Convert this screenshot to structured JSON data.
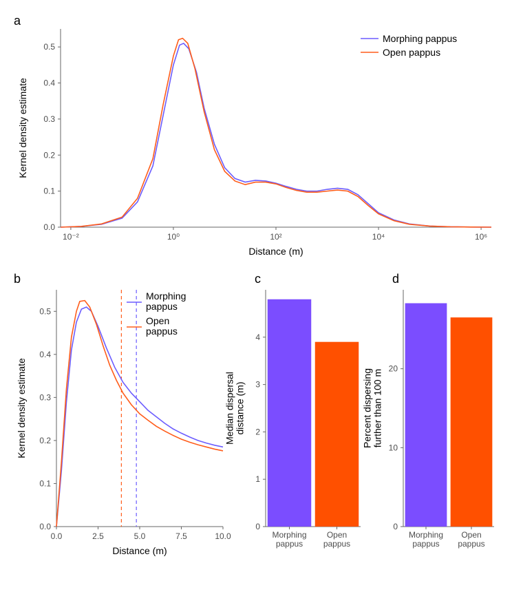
{
  "colors": {
    "morphing": "#6b5cff",
    "open": "#ff5c1a",
    "morphing_bar": "#7b4dff",
    "open_bar": "#ff5000",
    "axis": "#666666",
    "tick": "#4d4d4d",
    "panel_bg": "#ffffff",
    "grid": "#ebebeb"
  },
  "panel_a": {
    "label": "a",
    "type": "line",
    "x_label": "Distance (m)",
    "y_label": "Kernel density estimate",
    "x_scale": "log10",
    "x_tick_exponents": [
      -2,
      0,
      2,
      4,
      6
    ],
    "y_ticks": [
      0.0,
      0.1,
      0.2,
      0.3,
      0.4,
      0.5
    ],
    "ylim": [
      0,
      0.55
    ],
    "line_width": 1.6,
    "series": [
      {
        "name": "Morphing pappus",
        "color_key": "morphing",
        "points": [
          [
            -2.2,
            0.0
          ],
          [
            -1.8,
            0.002
          ],
          [
            -1.4,
            0.008
          ],
          [
            -1.0,
            0.025
          ],
          [
            -0.7,
            0.07
          ],
          [
            -0.4,
            0.17
          ],
          [
            -0.2,
            0.31
          ],
          [
            0.0,
            0.45
          ],
          [
            0.12,
            0.505
          ],
          [
            0.2,
            0.51
          ],
          [
            0.3,
            0.495
          ],
          [
            0.45,
            0.43
          ],
          [
            0.6,
            0.33
          ],
          [
            0.8,
            0.23
          ],
          [
            1.0,
            0.165
          ],
          [
            1.2,
            0.135
          ],
          [
            1.4,
            0.125
          ],
          [
            1.6,
            0.13
          ],
          [
            1.8,
            0.128
          ],
          [
            2.0,
            0.122
          ],
          [
            2.2,
            0.113
          ],
          [
            2.4,
            0.105
          ],
          [
            2.6,
            0.1
          ],
          [
            2.8,
            0.1
          ],
          [
            3.0,
            0.105
          ],
          [
            3.2,
            0.108
          ],
          [
            3.4,
            0.105
          ],
          [
            3.6,
            0.09
          ],
          [
            3.8,
            0.065
          ],
          [
            4.0,
            0.04
          ],
          [
            4.3,
            0.02
          ],
          [
            4.6,
            0.009
          ],
          [
            5.0,
            0.003
          ],
          [
            5.4,
            0.001
          ],
          [
            5.8,
            0.0003
          ],
          [
            6.2,
            0.0
          ]
        ]
      },
      {
        "name": "Open pappus",
        "color_key": "open",
        "points": [
          [
            -2.2,
            0.0
          ],
          [
            -1.8,
            0.002
          ],
          [
            -1.4,
            0.009
          ],
          [
            -1.0,
            0.028
          ],
          [
            -0.7,
            0.08
          ],
          [
            -0.4,
            0.19
          ],
          [
            -0.2,
            0.34
          ],
          [
            0.0,
            0.475
          ],
          [
            0.1,
            0.52
          ],
          [
            0.18,
            0.524
          ],
          [
            0.28,
            0.51
          ],
          [
            0.42,
            0.44
          ],
          [
            0.6,
            0.32
          ],
          [
            0.8,
            0.215
          ],
          [
            1.0,
            0.155
          ],
          [
            1.2,
            0.128
          ],
          [
            1.4,
            0.118
          ],
          [
            1.6,
            0.125
          ],
          [
            1.8,
            0.125
          ],
          [
            2.0,
            0.12
          ],
          [
            2.2,
            0.11
          ],
          [
            2.4,
            0.102
          ],
          [
            2.6,
            0.097
          ],
          [
            2.8,
            0.097
          ],
          [
            3.0,
            0.1
          ],
          [
            3.2,
            0.103
          ],
          [
            3.4,
            0.1
          ],
          [
            3.6,
            0.085
          ],
          [
            3.8,
            0.06
          ],
          [
            4.0,
            0.037
          ],
          [
            4.3,
            0.018
          ],
          [
            4.6,
            0.008
          ],
          [
            5.0,
            0.003
          ],
          [
            5.4,
            0.001
          ],
          [
            5.8,
            0.0003
          ],
          [
            6.2,
            0.0
          ]
        ]
      }
    ],
    "legend": {
      "items": [
        "Morphing pappus",
        "Open pappus"
      ],
      "position": "top-right"
    }
  },
  "panel_b": {
    "label": "b",
    "type": "line",
    "x_label": "Distance (m)",
    "y_label": "Kernel density estimate",
    "x_ticks": [
      0.0,
      2.5,
      5.0,
      7.5,
      10.0
    ],
    "y_ticks": [
      0.0,
      0.1,
      0.2,
      0.3,
      0.4,
      0.5
    ],
    "xlim": [
      0,
      10
    ],
    "ylim": [
      0,
      0.55
    ],
    "line_width": 1.6,
    "vlines": [
      {
        "x": 3.9,
        "color_key": "open",
        "dash": "5,4",
        "width": 1.2
      },
      {
        "x": 4.8,
        "color_key": "morphing",
        "dash": "5,4",
        "width": 1.2
      }
    ],
    "series": [
      {
        "name": "Morphing pappus",
        "color_key": "morphing",
        "points": [
          [
            0.0,
            0.0
          ],
          [
            0.3,
            0.13
          ],
          [
            0.6,
            0.29
          ],
          [
            0.9,
            0.41
          ],
          [
            1.2,
            0.475
          ],
          [
            1.5,
            0.505
          ],
          [
            1.8,
            0.51
          ],
          [
            2.1,
            0.5
          ],
          [
            2.5,
            0.465
          ],
          [
            3.0,
            0.415
          ],
          [
            3.5,
            0.37
          ],
          [
            4.0,
            0.335
          ],
          [
            4.5,
            0.31
          ],
          [
            5.0,
            0.29
          ],
          [
            5.5,
            0.27
          ],
          [
            6.0,
            0.255
          ],
          [
            6.5,
            0.24
          ],
          [
            7.0,
            0.227
          ],
          [
            7.5,
            0.217
          ],
          [
            8.0,
            0.208
          ],
          [
            8.5,
            0.2
          ],
          [
            9.0,
            0.194
          ],
          [
            9.5,
            0.189
          ],
          [
            10.0,
            0.185
          ]
        ]
      },
      {
        "name": "Open pappus",
        "color_key": "open",
        "points": [
          [
            0.0,
            0.0
          ],
          [
            0.3,
            0.15
          ],
          [
            0.6,
            0.32
          ],
          [
            0.9,
            0.44
          ],
          [
            1.2,
            0.5
          ],
          [
            1.4,
            0.523
          ],
          [
            1.7,
            0.525
          ],
          [
            2.0,
            0.51
          ],
          [
            2.4,
            0.47
          ],
          [
            2.8,
            0.42
          ],
          [
            3.2,
            0.375
          ],
          [
            3.6,
            0.34
          ],
          [
            4.0,
            0.31
          ],
          [
            4.5,
            0.283
          ],
          [
            5.0,
            0.262
          ],
          [
            5.5,
            0.247
          ],
          [
            6.0,
            0.233
          ],
          [
            6.5,
            0.222
          ],
          [
            7.0,
            0.212
          ],
          [
            7.5,
            0.203
          ],
          [
            8.0,
            0.196
          ],
          [
            8.5,
            0.19
          ],
          [
            9.0,
            0.185
          ],
          [
            9.5,
            0.18
          ],
          [
            10.0,
            0.176
          ]
        ]
      }
    ],
    "legend": {
      "items": [
        "Morphing pappus",
        "Open pappus"
      ]
    }
  },
  "panel_c": {
    "label": "c",
    "type": "bar",
    "y_label": "Median dispersal distance (m)",
    "categories": [
      "Morphing\npappus",
      "Open\npappus"
    ],
    "values": [
      4.8,
      3.9
    ],
    "bar_colors_keys": [
      "morphing_bar",
      "open_bar"
    ],
    "y_ticks": [
      0,
      1,
      2,
      3,
      4
    ],
    "ylim": [
      0,
      5
    ],
    "bar_width": 0.92
  },
  "panel_d": {
    "label": "d",
    "type": "bar",
    "y_label": "Percent dispersing further than 100 m",
    "categories": [
      "Morphing\npappus",
      "Open\npappus"
    ],
    "values": [
      28.3,
      26.5
    ],
    "bar_colors_keys": [
      "morphing_bar",
      "open_bar"
    ],
    "y_ticks": [
      0,
      10,
      20
    ],
    "ylim": [
      0,
      30
    ],
    "bar_width": 0.92
  }
}
